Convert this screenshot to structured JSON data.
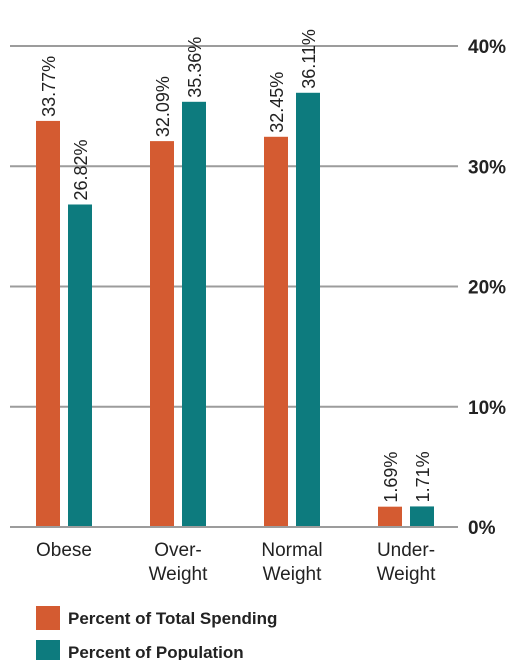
{
  "chart_data": {
    "type": "bar",
    "categories": [
      [
        "Obese"
      ],
      [
        "Over-",
        "Weight"
      ],
      [
        "Normal",
        "Weight"
      ],
      [
        "Under-",
        "Weight"
      ]
    ],
    "series": [
      {
        "name": "Percent of Total Spending",
        "color": "#d45b31",
        "values": [
          33.77,
          32.09,
          32.45,
          1.69
        ],
        "labels": [
          "33.77%",
          "32.09%",
          "32.45%",
          "1.69%"
        ]
      },
      {
        "name": "Percent of Population",
        "color": "#0d7b7e",
        "values": [
          26.82,
          35.36,
          36.11,
          1.71
        ],
        "labels": [
          "26.82%",
          "35.36%",
          "36.11%",
          "1.71%"
        ]
      }
    ],
    "ylim": [
      0,
      40
    ],
    "yticks": [
      {
        "value": 0,
        "label": "0%"
      },
      {
        "value": 10,
        "label": "10%"
      },
      {
        "value": 20,
        "label": "20%"
      },
      {
        "value": 30,
        "label": "30%"
      },
      {
        "value": 40,
        "label": "40%"
      }
    ],
    "y_axis_position": "right",
    "grid": true,
    "legend_position": "bottom-left",
    "title": "",
    "xlabel": "",
    "ylabel": ""
  }
}
